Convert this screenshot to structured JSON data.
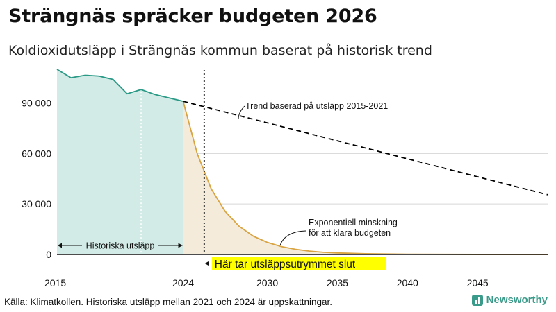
{
  "header": {
    "title": "Strängnäs spräcker budgeten 2026",
    "subtitle": "Koldioxidutsläpp i Strängnäs kommun baserat på historisk trend"
  },
  "footer": {
    "source": "Källa: Klimatkollen. Historiska utsläpp mellan 2021 och 2024 är uppskattningar.",
    "logo_text": "Newsworthy"
  },
  "colors": {
    "historic_line": "#2a9a86",
    "historic_fill": "#d3ebe6",
    "budget_line": "#d9a441",
    "budget_fill": "#f4ebda",
    "trend_line": "#000000",
    "highlight": "#ffff00"
  },
  "chart_data": {
    "type": "area",
    "xlim": [
      2015,
      2050
    ],
    "ylim": [
      0,
      110000
    ],
    "grid": true,
    "x_ticks": [
      2015,
      2024,
      2030,
      2035,
      2040,
      2045
    ],
    "x_tick_labels": [
      "2015",
      "2024",
      "2030",
      "2035",
      "2040",
      "2045"
    ],
    "y_ticks": [
      0,
      30000,
      60000,
      90000
    ],
    "y_tick_labels": [
      "0",
      "30 000",
      "60 000",
      "90 000"
    ],
    "series": [
      {
        "kind": "historic",
        "x": [
          2015,
          2016,
          2017,
          2018,
          2019,
          2020,
          2021,
          2022,
          2023,
          2024
        ],
        "y": [
          110000,
          105000,
          106500,
          106000,
          104000,
          95500,
          98000,
          95000,
          93000,
          91000
        ]
      },
      {
        "kind": "trend",
        "x": [
          2024,
          2050
        ],
        "y": [
          91000,
          35500
        ]
      },
      {
        "kind": "budget",
        "x": [
          2024,
          2025,
          2026,
          2027,
          2028,
          2029,
          2030,
          2031,
          2032,
          2033,
          2034,
          2035,
          2037,
          2040,
          2045,
          2050
        ],
        "y": [
          91000,
          60000,
          39000,
          25500,
          16700,
          10900,
          7200,
          4700,
          3100,
          2000,
          1300,
          900,
          450,
          150,
          30,
          0
        ]
      }
    ],
    "annotations": {
      "trend_label": "Trend baserad på utsläpp 2015-2021",
      "budget_label_1": "Exponentiell minskning",
      "budget_label_2": "för att klara budgeten",
      "historic_label": "Historiska utsläpp",
      "budget_end_label": "Här tar utsläppsutrymmet slut",
      "budget_end_year": 2025.5,
      "historic_marker_year": 2021
    }
  }
}
